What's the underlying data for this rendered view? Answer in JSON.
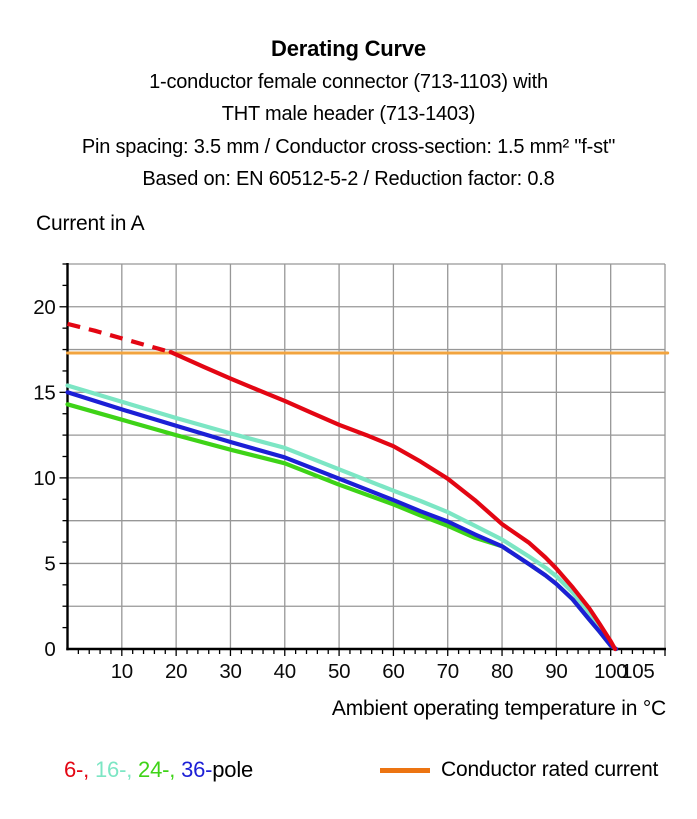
{
  "header": {
    "title": "Derating Curve",
    "subtitle_lines": [
      "1-conductor female connector (713-1103) with",
      "THT male header (713-1403)",
      "Pin spacing: 3.5 mm / Conductor cross-section: 1.5 mm² \"f-st\"",
      "Based on: EN 60512-5-2 / Reduction factor: 0.8"
    ]
  },
  "chart_data": {
    "type": "line",
    "title": "Derating Curve",
    "y_axis_title": "Current in A",
    "x_axis_title": "Ambient operating temperature in °C",
    "xlim": [
      0,
      110
    ],
    "ylim": [
      0,
      22.5
    ],
    "grid": true,
    "x_grid_step": 10,
    "y_grid_step": 2.5,
    "x_minor_tick_step": 2,
    "y_minor_tick_step": 1.25,
    "x_tick_labels": [
      10,
      20,
      30,
      40,
      50,
      60,
      70,
      80,
      90,
      100,
      105
    ],
    "y_tick_labels": [
      0,
      5,
      10,
      15,
      20
    ],
    "series": [
      {
        "name": "24-pole",
        "color": "#3ed317",
        "width": 4.2,
        "points": [
          [
            0,
            14.3
          ],
          [
            10,
            13.4
          ],
          [
            20,
            12.5
          ],
          [
            30,
            11.65
          ],
          [
            40,
            10.85
          ],
          [
            50,
            9.6
          ],
          [
            60,
            8.45
          ],
          [
            65,
            7.8
          ],
          [
            70,
            7.2
          ],
          [
            75,
            6.5
          ],
          [
            80,
            6.0
          ],
          [
            85,
            4.95
          ],
          [
            88,
            4.3
          ],
          [
            90,
            3.8
          ],
          [
            93,
            2.9
          ],
          [
            96,
            1.75
          ],
          [
            98,
            1.0
          ],
          [
            100,
            0.2
          ],
          [
            101,
            0
          ]
        ]
      },
      {
        "name": "16-pole",
        "color": "#7ce6c4",
        "width": 4.2,
        "points": [
          [
            0,
            15.4
          ],
          [
            10,
            14.45
          ],
          [
            20,
            13.5
          ],
          [
            30,
            12.6
          ],
          [
            40,
            11.75
          ],
          [
            50,
            10.5
          ],
          [
            60,
            9.25
          ],
          [
            65,
            8.65
          ],
          [
            70,
            8.0
          ],
          [
            75,
            7.2
          ],
          [
            80,
            6.4
          ],
          [
            85,
            5.4
          ],
          [
            88,
            4.75
          ],
          [
            90,
            4.25
          ],
          [
            93,
            3.3
          ],
          [
            96,
            2.15
          ],
          [
            98,
            1.25
          ],
          [
            100,
            0.35
          ],
          [
            100.9,
            0
          ]
        ]
      },
      {
        "name": "36-pole",
        "color": "#1c1fd6",
        "width": 4.2,
        "points": [
          [
            0,
            15.0
          ],
          [
            10,
            14.0
          ],
          [
            20,
            13.05
          ],
          [
            30,
            12.1
          ],
          [
            40,
            11.2
          ],
          [
            50,
            9.95
          ],
          [
            60,
            8.7
          ],
          [
            65,
            8.05
          ],
          [
            70,
            7.45
          ],
          [
            75,
            6.7
          ],
          [
            80,
            6.0
          ],
          [
            85,
            4.95
          ],
          [
            88,
            4.3
          ],
          [
            90,
            3.8
          ],
          [
            93,
            2.9
          ],
          [
            96,
            1.75
          ],
          [
            98,
            1.0
          ],
          [
            100,
            0.2
          ],
          [
            101,
            0
          ]
        ]
      },
      {
        "name": "conductor-rated-current",
        "color": "#f2a43f",
        "width": 3,
        "points": [
          [
            0,
            17.3
          ],
          [
            110.5,
            17.3
          ]
        ]
      },
      {
        "name": "6-pole",
        "color": "#e30613",
        "width": 4.2,
        "dashed_until": 19,
        "points": [
          [
            0,
            19.0
          ],
          [
            5,
            18.6
          ],
          [
            10,
            18.15
          ],
          [
            15,
            17.7
          ],
          [
            19,
            17.35
          ],
          [
            25,
            16.5
          ],
          [
            30,
            15.8
          ],
          [
            35,
            15.15
          ],
          [
            40,
            14.5
          ],
          [
            45,
            13.8
          ],
          [
            50,
            13.1
          ],
          [
            55,
            12.5
          ],
          [
            60,
            11.85
          ],
          [
            65,
            10.95
          ],
          [
            70,
            9.95
          ],
          [
            75,
            8.7
          ],
          [
            80,
            7.3
          ],
          [
            85,
            6.2
          ],
          [
            88,
            5.35
          ],
          [
            90,
            4.7
          ],
          [
            93,
            3.6
          ],
          [
            96,
            2.4
          ],
          [
            98,
            1.45
          ],
          [
            100,
            0.45
          ],
          [
            100.8,
            0
          ]
        ]
      }
    ]
  },
  "legend": {
    "pole_entries": [
      {
        "label": "6-",
        "color": "#e30613"
      },
      {
        "label": "16-",
        "color": "#7ce6c4"
      },
      {
        "label": "24-",
        "color": "#3ed317"
      },
      {
        "label": "36-",
        "color": "#1c1fd6"
      }
    ],
    "pole_suffix": "pole",
    "rated_label": "Conductor rated current",
    "rated_color": "#ec7412"
  }
}
